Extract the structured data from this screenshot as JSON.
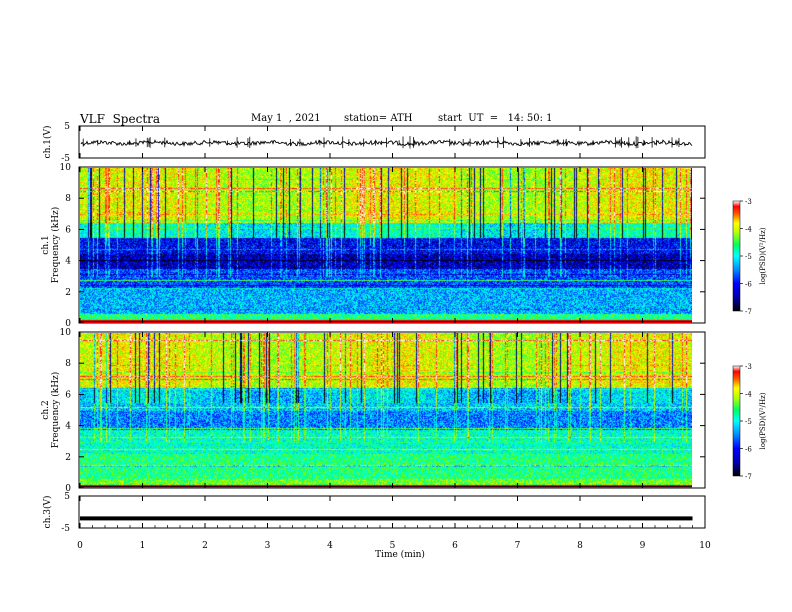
{
  "header": {
    "title": "VLF  Spectra",
    "date": "May 1  , 2021",
    "station": "station= ATH",
    "start_time": "start  UT  =   14: 50: 1"
  },
  "chart_data": [
    {
      "type": "line",
      "ylabel": "ch.1(V)",
      "ylim": [
        -5,
        5
      ],
      "yticks": [
        "5",
        "-5"
      ],
      "description_values": {
        "approx_level": 0,
        "noise_amplitude": 1
      }
    },
    {
      "type": "heatmap",
      "ylabel": "ch.1\nFrequency (kHz)",
      "ylabel_lines": [
        "ch.1",
        "Frequency  (kHz)"
      ],
      "ylim": [
        0,
        10
      ],
      "yticks": [
        "0",
        "2",
        "4",
        "6",
        "8",
        "10"
      ],
      "colorbar": {
        "label": "log(PSD)(V²/Hz)",
        "ticks": [
          "-3",
          "-4",
          "-5",
          "-6",
          "-7"
        ],
        "range": [
          -7,
          -3
        ]
      }
    },
    {
      "type": "heatmap",
      "ylabel_lines": [
        "ch.2",
        "Frequency  (kHz)"
      ],
      "ylim": [
        0,
        10
      ],
      "yticks": [
        "0",
        "2",
        "4",
        "6",
        "8",
        "10"
      ],
      "colorbar": {
        "label": "log(PSD)(V²/Hz)",
        "ticks": [
          "-3",
          "-4",
          "-5",
          "-6",
          "-7"
        ],
        "range": [
          -7,
          -3
        ]
      }
    },
    {
      "type": "line",
      "ylabel": "ch.3(V)",
      "ylim": [
        -5,
        5
      ],
      "yticks": [
        "5",
        "-5"
      ],
      "description_values": {
        "approx_level": -2
      }
    }
  ],
  "xaxis": {
    "label": "Time  (min)",
    "ticks": [
      "0",
      "1",
      "2",
      "3",
      "4",
      "5",
      "6",
      "7",
      "8",
      "9",
      "10"
    ],
    "xlim": [
      0,
      10
    ],
    "data_end": 9.8
  },
  "colors": {
    "colormap": [
      "#000000",
      "#00007f",
      "#0000ff",
      "#0080ff",
      "#00ffff",
      "#00ff80",
      "#80ff00",
      "#ffff00",
      "#ff8000",
      "#ff0000",
      "#ffffff"
    ]
  }
}
